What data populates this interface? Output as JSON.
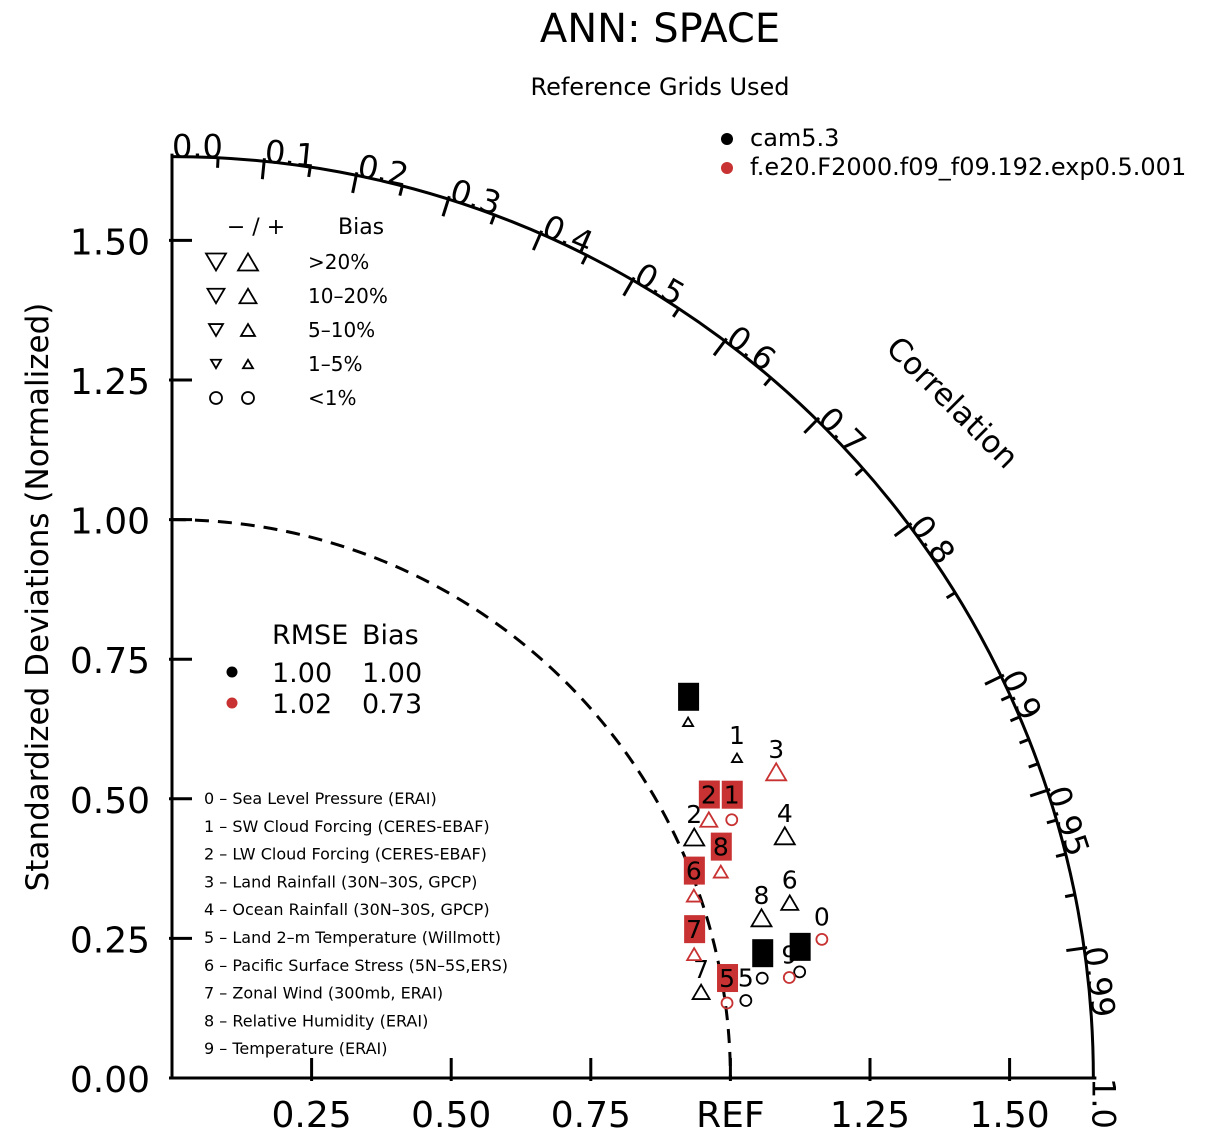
{
  "colors": {
    "model1": "#000000",
    "model2": "#c83232",
    "axis": "#000000",
    "background": "#ffffff"
  },
  "chart_data": {
    "type": "scatter",
    "subtype": "taylor-diagram",
    "title": "ANN: SPACE",
    "subtitle": "Reference Grids Used",
    "ylabel": "Standardized Deviations (Normalized)",
    "arc_label": "Correlation",
    "ref_label": "REF",
    "std_range": [
      0,
      1.65
    ],
    "std_ticks": [
      "0.00",
      "0.25",
      "0.50",
      "0.75",
      "1.00",
      "1.25",
      "1.50"
    ],
    "x_ticks": [
      "0.25",
      "0.50",
      "0.75",
      "REF",
      "1.25",
      "1.50"
    ],
    "corr_ticks": [
      "0.0",
      "0.1",
      "0.2",
      "0.3",
      "0.4",
      "0.5",
      "0.6",
      "0.7",
      "0.8",
      "0.9",
      "0.95",
      "0.99",
      "1.0"
    ],
    "grid": false,
    "legend_placement": "top-right",
    "series": [
      {
        "name": "cam5.3",
        "color": "#000000",
        "rmse": "1.00",
        "bias": "1.00",
        "points": [
          {
            "id": "0",
            "std": 1.072,
            "corr": 0.986,
            "bias": "<1%",
            "boxed": true
          },
          {
            "id": "1",
            "std": 1.163,
            "corr": 0.87,
            "bias": "1-5%",
            "boxed": false
          },
          {
            "id": "2",
            "std": 1.03,
            "corr": 0.908,
            "bias": ">20%",
            "boxed": false
          },
          {
            "id": "3",
            "std": 1.123,
            "corr": 0.823,
            "bias": "1-5%",
            "boxed": true
          },
          {
            "id": "4",
            "std": 1.18,
            "corr": 0.93,
            "bias": ">20%",
            "boxed": false
          },
          {
            "id": "5",
            "std": 1.037,
            "corr": 0.991,
            "bias": "<1%",
            "boxed": false
          },
          {
            "id": "6",
            "std": 1.15,
            "corr": 0.962,
            "bias": "10-20%",
            "boxed": false
          },
          {
            "id": "7",
            "std": 0.96,
            "corr": 0.987,
            "bias": "10-20%",
            "boxed": false
          },
          {
            "id": "8",
            "std": 1.094,
            "corr": 0.965,
            "bias": ">20%",
            "boxed": false
          },
          {
            "id": "9",
            "std": 1.14,
            "corr": 0.986,
            "bias": "<1%",
            "boxed": true
          }
        ]
      },
      {
        "name": "f.e20.F2000.f09_f09.192.exp0.5.001",
        "color": "#c83232",
        "rmse": "1.02",
        "bias": "0.73",
        "points": [
          {
            "id": "0",
            "std": 1.19,
            "corr": 0.978,
            "bias": "<1%",
            "boxed": false
          },
          {
            "id": "1",
            "std": 1.104,
            "corr": 0.908,
            "bias": "<1%",
            "boxed": true
          },
          {
            "id": "2",
            "std": 1.067,
            "corr": 0.901,
            "bias": "10-20%",
            "boxed": true
          },
          {
            "id": "3",
            "std": 1.213,
            "corr": 0.892,
            "bias": ">20%",
            "boxed": false
          },
          {
            "id": "4",
            "std": null,
            "corr": null,
            "bias": "",
            "boxed": false
          },
          {
            "id": "5",
            "std": 1.003,
            "corr": 0.991,
            "bias": "<1%",
            "boxed": true
          },
          {
            "id": "6",
            "std": 0.99,
            "corr": 0.944,
            "bias": "5-10%",
            "boxed": true
          },
          {
            "id": "7",
            "std": 0.961,
            "corr": 0.973,
            "bias": "5-10%",
            "boxed": true
          },
          {
            "id": "8",
            "std": 1.05,
            "corr": 0.936,
            "bias": "5-10%",
            "boxed": true
          },
          {
            "id": "9",
            "std": 1.12,
            "corr": 0.987,
            "bias": "<1%",
            "boxed": false
          }
        ]
      }
    ],
    "bias_legend": {
      "header_sign": "− / +",
      "header_label": "Bias",
      "rows": [
        ">20%",
        "10–20%",
        "5–10%",
        "1–5%",
        "<1%"
      ]
    },
    "stats_legend": {
      "header_rmse": "RMSE",
      "header_bias": "Bias"
    },
    "variables": [
      "0 – Sea Level Pressure (ERAI)",
      "1 – SW Cloud Forcing (CERES-EBAF)",
      "2 – LW Cloud Forcing (CERES-EBAF)",
      "3 – Land Rainfall (30N–30S, GPCP)",
      "4 – Ocean Rainfall (30N–30S, GPCP)",
      "5 – Land 2–m Temperature (Willmott)",
      "6 – Pacific Surface Stress (5N–5S,ERS)",
      "7 – Zonal Wind (300mb, ERAI)",
      "8 – Relative Humidity (ERAI)",
      "9 – Temperature (ERAI)"
    ]
  }
}
